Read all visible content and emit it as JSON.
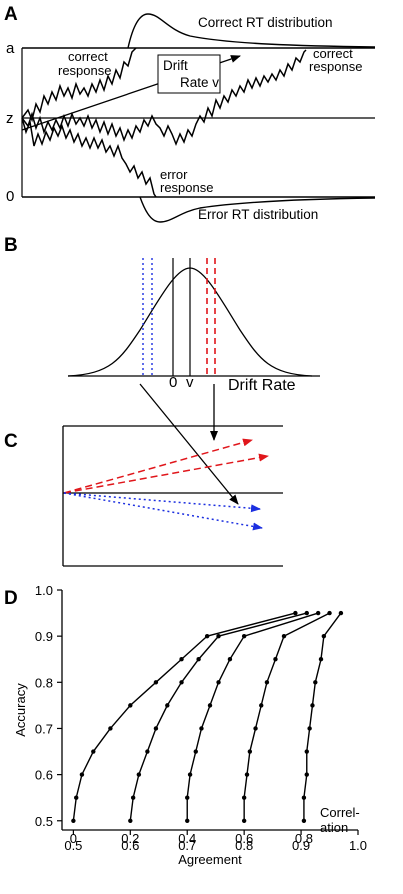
{
  "panelA": {
    "label": "A",
    "correct_dist_label": "Correct RT distribution",
    "error_dist_label": "Error RT distribution",
    "boundary_a": "a",
    "start_z": "z",
    "boundary_0": "0",
    "correct_response_left": [
      "correct",
      "response"
    ],
    "correct_response_right": [
      "correct",
      "response"
    ],
    "error_response": [
      "error",
      "response"
    ],
    "drift_label": [
      "Drift",
      "Rate v"
    ]
  },
  "panelB": {
    "label": "B",
    "zero_label": "0",
    "v_label": "v",
    "xlabel": "Drift Rate"
  },
  "panelC": {
    "label": "C"
  },
  "panelD": {
    "label": "D",
    "colors": {
      "line": "#000000"
    },
    "chart_data": {
      "type": "line",
      "xlabel": "Agreement",
      "ylabel": "Accuracy",
      "xlim": [
        0.48,
        1.0
      ],
      "ylim": [
        0.48,
        1.0
      ],
      "xticks": [
        "0.5",
        "0.6",
        "0.7",
        "0.8",
        "0.9",
        "1.0"
      ],
      "yticks": [
        "0.5",
        "0.6",
        "0.7",
        "0.8",
        "0.9",
        "1.0"
      ],
      "series_note_label": [
        "Correl-",
        "ation"
      ],
      "series": [
        {
          "name": "0",
          "points": [
            [
              0.5,
              0.5
            ],
            [
              0.505,
              0.55
            ],
            [
              0.515,
              0.6
            ],
            [
              0.535,
              0.65
            ],
            [
              0.565,
              0.7
            ],
            [
              0.6,
              0.75
            ],
            [
              0.645,
              0.8
            ],
            [
              0.69,
              0.85
            ],
            [
              0.735,
              0.9
            ],
            [
              0.89,
              0.95
            ]
          ]
        },
        {
          "name": "0.2",
          "points": [
            [
              0.6,
              0.5
            ],
            [
              0.605,
              0.55
            ],
            [
              0.615,
              0.6
            ],
            [
              0.63,
              0.65
            ],
            [
              0.645,
              0.7
            ],
            [
              0.665,
              0.75
            ],
            [
              0.69,
              0.8
            ],
            [
              0.72,
              0.85
            ],
            [
              0.755,
              0.9
            ],
            [
              0.91,
              0.95
            ]
          ]
        },
        {
          "name": "0.4",
          "points": [
            [
              0.7,
              0.5
            ],
            [
              0.7,
              0.55
            ],
            [
              0.705,
              0.6
            ],
            [
              0.715,
              0.65
            ],
            [
              0.725,
              0.7
            ],
            [
              0.74,
              0.75
            ],
            [
              0.755,
              0.8
            ],
            [
              0.775,
              0.85
            ],
            [
              0.8,
              0.9
            ],
            [
              0.93,
              0.95
            ]
          ]
        },
        {
          "name": "0.6",
          "points": [
            [
              0.8,
              0.5
            ],
            [
              0.8,
              0.55
            ],
            [
              0.805,
              0.6
            ],
            [
              0.81,
              0.65
            ],
            [
              0.82,
              0.7
            ],
            [
              0.83,
              0.75
            ],
            [
              0.84,
              0.8
            ],
            [
              0.855,
              0.85
            ],
            [
              0.87,
              0.9
            ],
            [
              0.95,
              0.95
            ]
          ]
        },
        {
          "name": "0.8",
          "points": [
            [
              0.905,
              0.5
            ],
            [
              0.905,
              0.55
            ],
            [
              0.91,
              0.6
            ],
            [
              0.91,
              0.65
            ],
            [
              0.915,
              0.7
            ],
            [
              0.92,
              0.75
            ],
            [
              0.925,
              0.8
            ],
            [
              0.935,
              0.85
            ],
            [
              0.94,
              0.9
            ],
            [
              0.97,
              0.95
            ]
          ]
        }
      ]
    }
  }
}
